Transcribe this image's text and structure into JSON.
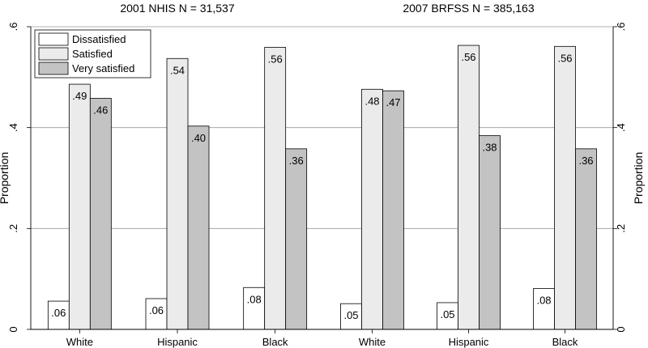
{
  "chart_data": {
    "type": "bar",
    "ylabel": "Proportion",
    "ylim": [
      0,
      0.6
    ],
    "yticks": [
      0,
      0.2,
      0.4,
      0.6
    ],
    "ytick_labels": [
      "0",
      ".2",
      ".4",
      ".6"
    ],
    "grid": true,
    "legend_position": "top-left",
    "colors": {
      "Dissatisfied": "#ffffff",
      "Satisfied": "#ebebeb",
      "Very satisfied": "#c3c3c3"
    },
    "panels": [
      {
        "title": "2001 NHIS N = 31,537",
        "categories": [
          "White",
          "Hispanic",
          "Black"
        ],
        "series": [
          {
            "name": "Dissatisfied",
            "values": [
              0.056,
              0.061,
              0.083
            ],
            "labels": [
              ".06",
              ".06",
              ".08"
            ]
          },
          {
            "name": "Satisfied",
            "values": [
              0.486,
              0.537,
              0.559
            ],
            "labels": [
              ".49",
              ".54",
              ".56"
            ]
          },
          {
            "name": "Very satisfied",
            "values": [
              0.458,
              0.403,
              0.358
            ],
            "labels": [
              ".46",
              ".40",
              ".36"
            ]
          }
        ]
      },
      {
        "title": "2007 BRFSS N = 385,163",
        "categories": [
          "White",
          "Hispanic",
          "Black"
        ],
        "series": [
          {
            "name": "Dissatisfied",
            "values": [
              0.051,
              0.053,
              0.081
            ],
            "labels": [
              ".05",
              ".05",
              ".08"
            ]
          },
          {
            "name": "Satisfied",
            "values": [
              0.476,
              0.563,
              0.561
            ],
            "labels": [
              ".48",
              ".56",
              ".56"
            ]
          },
          {
            "name": "Very satisfied",
            "values": [
              0.473,
              0.384,
              0.358
            ],
            "labels": [
              ".47",
              ".38",
              ".36"
            ]
          }
        ]
      }
    ]
  }
}
